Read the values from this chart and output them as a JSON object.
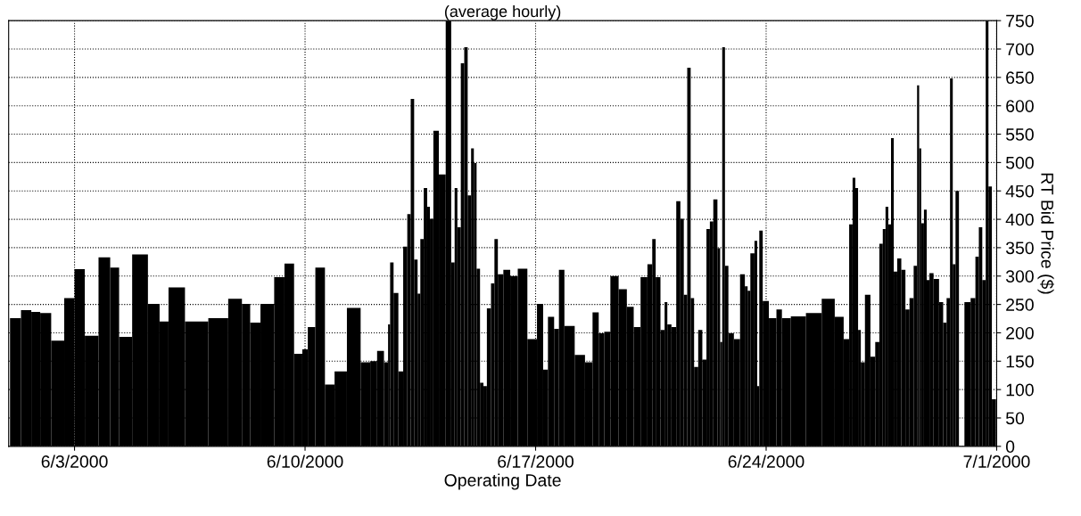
{
  "chart_data": {
    "type": "bar",
    "title": "(average hourly)",
    "xlabel": "Operating Date",
    "ylabel": "RT Bid Price ($)",
    "color": "#000000",
    "grid": true,
    "xlim": [
      "2000-06-01",
      "2000-07-01"
    ],
    "xticks": [
      {
        "value": "2000-06-03",
        "label": "6/3/2000"
      },
      {
        "value": "2000-06-10",
        "label": "6/10/2000"
      },
      {
        "value": "2000-06-17",
        "label": "6/17/2000"
      },
      {
        "value": "2000-06-24",
        "label": "6/24/2000"
      },
      {
        "value": "2000-07-01",
        "label": "7/1/2000"
      }
    ],
    "ylim": [
      0,
      750
    ],
    "yticks": [
      0,
      50,
      100,
      150,
      200,
      250,
      300,
      350,
      400,
      450,
      500,
      550,
      600,
      650,
      700,
      750
    ],
    "x": [
      "2000-06-01T05:00",
      "2000-06-01T13:00",
      "2000-06-01T20:00",
      "2000-06-02T02:00",
      "2000-06-02T12:00",
      "2000-06-02T21:00",
      "2000-06-03T03:00",
      "2000-06-03T12:00",
      "2000-06-03T23:00",
      "2000-06-04T05:00",
      "2000-06-04T12:00",
      "2000-06-05T00:00",
      "2000-06-05T11:00",
      "2000-06-05T17:00",
      "2000-06-06T00:00",
      "2000-06-06T17:00",
      "2000-06-07T10:00",
      "2000-06-07T22:00",
      "2000-06-08T06:00",
      "2000-06-08T10:00",
      "2000-06-08T21:00",
      "2000-06-09T06:00",
      "2000-06-09T12:00",
      "2000-06-09T20:00",
      "2000-06-10T00:00",
      "2000-06-10T04:00",
      "2000-06-10T11:00",
      "2000-06-10T18:00",
      "2000-06-11T01:00",
      "2000-06-11T12:00",
      "2000-06-11T21:00",
      "2000-06-12T02:00",
      "2000-06-12T07:00",
      "2000-06-12T12:00",
      "2000-06-12T13:00",
      "2000-06-12T15:00",
      "2000-06-12T18:00",
      "2000-06-12T22:00",
      "2000-06-13T01:00",
      "2000-06-13T04:00",
      "2000-06-13T06:00",
      "2000-06-13T09:00",
      "2000-06-13T11:00",
      "2000-06-13T13:00",
      "2000-06-13T16:00",
      "2000-06-13T18:00",
      "2000-06-13T20:00",
      "2000-06-13T23:00",
      "2000-06-14T04:00",
      "2000-06-14T09:00",
      "2000-06-14T12:00",
      "2000-06-14T14:00",
      "2000-06-14T16:00",
      "2000-06-14T19:00",
      "2000-06-14T21:00",
      "2000-06-15T00:00",
      "2000-06-15T02:00",
      "2000-06-15T04:00",
      "2000-06-15T06:00",
      "2000-06-15T09:00",
      "2000-06-15T11:00",
      "2000-06-15T14:00",
      "2000-06-15T17:00",
      "2000-06-15T19:00",
      "2000-06-15T22:00",
      "2000-06-16T03:00",
      "2000-06-16T08:00",
      "2000-06-16T14:00",
      "2000-06-16T22:00",
      "2000-06-17T04:00",
      "2000-06-17T07:00",
      "2000-06-17T11:00",
      "2000-06-17T16:00",
      "2000-06-17T18:00",
      "2000-06-18T00:00",
      "2000-06-18T09:00",
      "2000-06-18T15:00",
      "2000-06-18T20:00",
      "2000-06-19T00:00",
      "2000-06-19T04:00",
      "2000-06-19T09:00",
      "2000-06-19T16:00",
      "2000-06-19T21:00",
      "2000-06-20T02:00",
      "2000-06-20T07:00",
      "2000-06-20T12:00",
      "2000-06-20T14:00",
      "2000-06-20T17:00",
      "2000-06-20T21:00",
      "2000-06-20T23:00",
      "2000-06-21T01:00",
      "2000-06-21T05:00",
      "2000-06-21T08:00",
      "2000-06-21T11:00",
      "2000-06-21T13:00",
      "2000-06-21T16:00",
      "2000-06-21T18:00",
      "2000-06-21T21:00",
      "2000-06-22T00:00",
      "2000-06-22T03:00",
      "2000-06-22T06:00",
      "2000-06-22T08:00",
      "2000-06-22T11:00",
      "2000-06-22T14:00",
      "2000-06-22T15:00",
      "2000-06-22T17:00",
      "2000-06-22T19:00",
      "2000-06-22T22:00",
      "2000-06-23T03:00",
      "2000-06-23T07:00",
      "2000-06-23T10:00",
      "2000-06-23T11:00",
      "2000-06-23T14:00",
      "2000-06-23T17:00",
      "2000-06-23T18:00",
      "2000-06-23T20:00",
      "2000-06-23T23:00",
      "2000-06-24T05:00",
      "2000-06-24T10:00",
      "2000-06-24T13:00",
      "2000-06-24T23:00",
      "2000-06-25T11:00",
      "2000-06-25T22:00",
      "2000-06-26T06:00",
      "2000-06-26T11:00",
      "2000-06-26T14:00",
      "2000-06-26T16:00",
      "2000-06-26T18:00",
      "2000-06-26T20:00",
      "2000-06-26T22:00",
      "2000-06-27T02:00",
      "2000-06-27T06:00",
      "2000-06-27T09:00",
      "2000-06-27T12:00",
      "2000-06-27T14:00",
      "2000-06-27T16:00",
      "2000-06-27T18:00",
      "2000-06-27T20:00",
      "2000-06-27T22:00",
      "2000-06-28T01:00",
      "2000-06-28T04:00",
      "2000-06-28T07:00",
      "2000-06-28T10:00",
      "2000-06-28T13:00",
      "2000-06-28T15:00",
      "2000-06-28T16:00",
      "2000-06-28T18:00",
      "2000-06-28T20:00",
      "2000-06-28T22:00",
      "2000-06-29T00:00",
      "2000-06-29T04:00",
      "2000-06-29T08:00",
      "2000-06-29T10:00",
      "2000-06-29T13:00",
      "2000-06-29T15:00",
      "2000-06-29T17:00",
      "2000-06-29T19:00",
      "2000-06-29T22:00",
      "2000-06-30T03:00",
      "2000-06-30T07:00",
      "2000-06-30T10:00",
      "2000-06-30T12:00",
      "2000-06-30T15:00",
      "2000-06-30T17:00",
      "2000-06-30T19:00",
      "2000-06-30T22:00"
    ],
    "values": [
      226,
      240,
      237,
      235,
      186,
      261,
      312,
      195,
      333,
      315,
      193,
      338,
      251,
      220,
      280,
      220,
      226,
      260,
      251,
      218,
      251,
      298,
      322,
      163,
      171,
      210,
      315,
      109,
      132,
      244,
      148,
      150,
      168,
      148,
      215,
      324,
      270,
      132,
      352,
      409,
      612,
      329,
      269,
      365,
      455,
      422,
      401,
      556,
      479,
      750,
      324,
      455,
      386,
      675,
      703,
      442,
      525,
      499,
      313,
      112,
      106,
      243,
      287,
      365,
      303,
      311,
      300,
      313,
      189,
      251,
      135,
      228,
      207,
      311,
      212,
      161,
      148,
      236,
      199,
      202,
      300,
      277,
      246,
      210,
      298,
      321,
      365,
      298,
      205,
      254,
      215,
      210,
      432,
      401,
      267,
      667,
      261,
      140,
      205,
      153,
      383,
      396,
      435,
      349,
      184,
      703,
      318,
      199,
      189,
      303,
      282,
      274,
      340,
      362,
      106,
      380,
      256,
      226,
      241,
      226,
      229,
      235,
      260,
      228,
      189,
      391,
      473,
      455,
      205,
      148,
      267,
      158,
      184,
      357,
      383,
      422,
      391,
      543,
      308,
      331,
      311,
      241,
      261,
      318,
      636,
      525,
      393,
      417,
      293,
      305,
      295,
      254,
      218,
      261,
      648,
      321,
      450,
      0,
      254,
      261,
      334,
      386,
      293,
      750,
      458,
      83
    ]
  }
}
